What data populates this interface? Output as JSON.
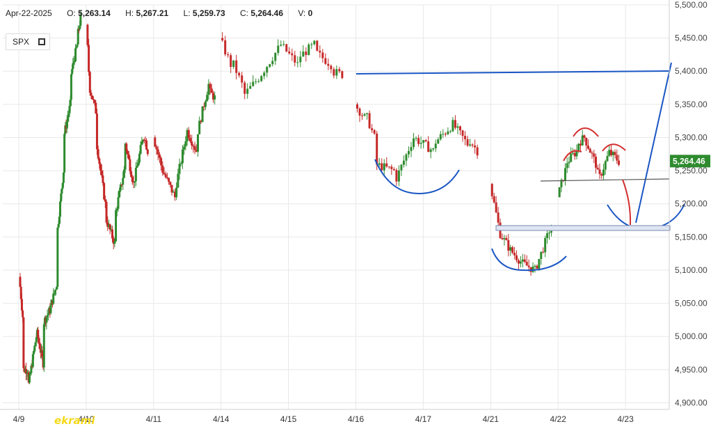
{
  "header": {
    "date": "Apr-22-2025",
    "open_label": "O:",
    "open": "5,263.14",
    "high_label": "H:",
    "high": "5,267.21",
    "low_label": "L:",
    "low": "5,259.73",
    "close_label": "C:",
    "close": "5,264.46",
    "volume_label": "V:",
    "volume": "0"
  },
  "symbol": "SPX",
  "watermark": "ekrami",
  "colors": {
    "up": "#2e8b2e",
    "down": "#c62828",
    "blue_line": "#1a56c4",
    "red_line": "#d32f2f",
    "last_price_bg": "#2e8b2e",
    "grid": "#e8e8e8"
  },
  "chart_data": {
    "type": "candlestick",
    "ylim": [
      4890,
      5500
    ],
    "y_ticks": [
      4900,
      4950,
      5000,
      5050,
      5100,
      5150,
      5200,
      5250,
      5300,
      5350,
      5400,
      5450,
      5500
    ],
    "y_tick_labels": [
      "4,900.00",
      "4,950.00",
      "5,000.00",
      "5,050.00",
      "5,100.00",
      "5,150.00",
      "5,200.00",
      "5,250.00",
      "5,300.00",
      "5,350.00",
      "5,400.00",
      "5,450.00",
      "5,500.00"
    ],
    "x_labels": [
      "4/9",
      "4/10",
      "4/11",
      "4/14",
      "4/15",
      "4/16",
      "4/17",
      "4/21",
      "4/22",
      "4/23"
    ],
    "last_price": 5264.46,
    "last_price_label": "5,264.46",
    "sessions": [
      {
        "label": "4/9",
        "path": [
          [
            5090,
            5030,
            2
          ],
          [
            4950,
            4950,
            3
          ],
          [
            4920,
            5000,
            5
          ],
          [
            5010,
            4960,
            4
          ],
          [
            5020,
            5040,
            4
          ],
          [
            5040,
            5080,
            4
          ],
          [
            5150,
            5250,
            4
          ],
          [
            5300,
            5350,
            4
          ],
          [
            5390,
            5440,
            4
          ],
          [
            5450,
            5480,
            2
          ]
        ]
      },
      {
        "label": "4/10",
        "path": [
          [
            5470,
            5400,
            1
          ],
          [
            5380,
            5340,
            3
          ],
          [
            5300,
            5200,
            4
          ],
          [
            5180,
            5140,
            4
          ],
          [
            5180,
            5250,
            4
          ],
          [
            5300,
            5230,
            4
          ],
          [
            5230,
            5300,
            4
          ],
          [
            5310,
            5280,
            2
          ]
        ]
      },
      {
        "label": "4/11",
        "path": [
          [
            5300,
            5250,
            3
          ],
          [
            5250,
            5210,
            4
          ],
          [
            5220,
            5310,
            4
          ],
          [
            5310,
            5280,
            3
          ],
          [
            5300,
            5380,
            4
          ],
          [
            5370,
            5360,
            2
          ]
        ]
      },
      {
        "label": "4/14",
        "path": [
          [
            5450,
            5410,
            2
          ],
          [
            5420,
            5380,
            2
          ],
          [
            5360,
            5390,
            3
          ],
          [
            5390,
            5440,
            4
          ],
          [
            5440,
            5410,
            3
          ],
          [
            5420,
            5440,
            3
          ],
          [
            5430,
            5410,
            3
          ],
          [
            5400,
            5395,
            2
          ]
        ]
      },
      {
        "label": "4/16",
        "path": [
          [
            5350,
            5330,
            2
          ],
          [
            5340,
            5300,
            2
          ],
          [
            5260,
            5250,
            4
          ],
          [
            5230,
            5300,
            4
          ],
          [
            5300,
            5280,
            4
          ],
          [
            5290,
            5320,
            4
          ],
          [
            5320,
            5290,
            3
          ],
          [
            5300,
            5280,
            2
          ]
        ]
      },
      {
        "label": "4/21",
        "path": [
          [
            5230,
            5170,
            2
          ],
          [
            5160,
            5130,
            3
          ],
          [
            5130,
            5110,
            3
          ],
          [
            5110,
            5100,
            3
          ],
          [
            5100,
            5150,
            3
          ],
          [
            5160,
            5160,
            1
          ]
        ]
      },
      {
        "label": "4/22",
        "path": [
          [
            5210,
            5250,
            2
          ],
          [
            5260,
            5280,
            3
          ],
          [
            5290,
            5300,
            2
          ],
          [
            5300,
            5260,
            3
          ],
          [
            5250,
            5240,
            1
          ],
          [
            5240,
            5270,
            2
          ],
          [
            5280,
            5270,
            2
          ],
          [
            5270,
            5264,
            1
          ]
        ]
      }
    ]
  }
}
